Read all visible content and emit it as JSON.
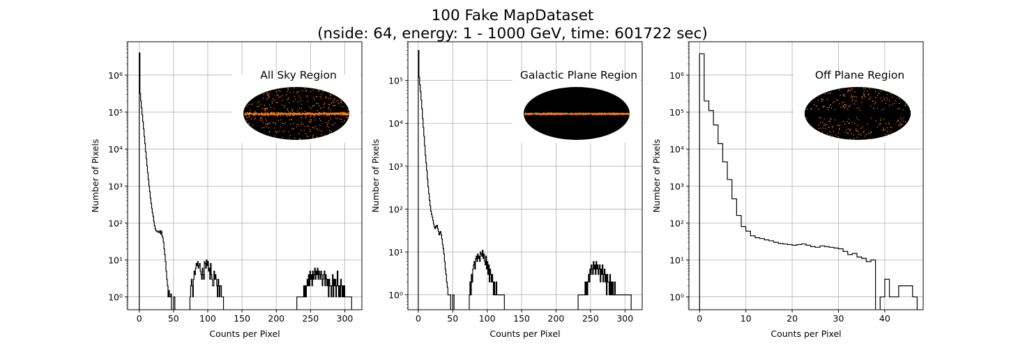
{
  "figure": {
    "title_line1": "100 Fake MapDataset",
    "title_line2": "(nside: 64, energy: 1 - 1000 GeV, time: 601722 sec)"
  },
  "colors": {
    "line": "#000000",
    "grid": "#b0b0b0",
    "sky_bg": "#000000",
    "sky_points": "#ff7f0e"
  },
  "chart_data": [
    {
      "type": "histogram",
      "title": "All Sky Region",
      "xlabel": "Counts per Pixel",
      "ylabel": "Number of Pixels",
      "y_scale": "log",
      "grid": true,
      "xlim": [
        -17,
        325
      ],
      "ylim": [
        0.45,
        8000000
      ],
      "xticks": [
        0,
        50,
        100,
        150,
        200,
        250,
        300
      ],
      "yticks": [
        1,
        10,
        100,
        1000,
        10000,
        100000,
        1000000
      ],
      "inset": "all-sky",
      "bin_width": 1,
      "runs": [
        {
          "x0": 0,
          "values": [
            4000000,
            320000,
            200000,
            130000,
            85000,
            55000,
            35000,
            22000,
            14000,
            8500,
            5500,
            3500,
            2300,
            1500,
            1000,
            700,
            480,
            340,
            250,
            190,
            150,
            110,
            85,
            70,
            62,
            60,
            58,
            60,
            55,
            57,
            62,
            50,
            60,
            45,
            40,
            30,
            20,
            14,
            9,
            5,
            3,
            2,
            1,
            1.5,
            1,
            1,
            1.2
          ]
        },
        {
          "x0": 50,
          "values": [
            1,
            1
          ]
        },
        {
          "x0": 74,
          "values": [
            1,
            2,
            3,
            2,
            1,
            3,
            5,
            4,
            6,
            8,
            7,
            9,
            6,
            7,
            8,
            5,
            4,
            3,
            6,
            4,
            3,
            9,
            8,
            6,
            10,
            7,
            9,
            5,
            6,
            3,
            8,
            4,
            3,
            2,
            2,
            5,
            3,
            4,
            3,
            2,
            1,
            3,
            2,
            1,
            2,
            2,
            1,
            1,
            1
          ]
        },
        {
          "x0": 230,
          "values": [
            1,
            1,
            1,
            1,
            1,
            1,
            1,
            1,
            1,
            1,
            2,
            1,
            2,
            1,
            2,
            3,
            2,
            4,
            2,
            5,
            3,
            4,
            2,
            5,
            3,
            4,
            6,
            3,
            5,
            4,
            6,
            3,
            5,
            4,
            3,
            5,
            4,
            2,
            3,
            4,
            5,
            2,
            4,
            3,
            2,
            3,
            1,
            3,
            2,
            2,
            1,
            2,
            4,
            1,
            3,
            2,
            3,
            1,
            2,
            5,
            2,
            1,
            2,
            1,
            3,
            2,
            1,
            2,
            1,
            2,
            1,
            1,
            1,
            1,
            1,
            1,
            1,
            1,
            1,
            1
          ]
        }
      ]
    },
    {
      "type": "histogram",
      "title": "Galactic Plane Region",
      "xlabel": "Counts per Pixel",
      "ylabel": "Number of Pixels",
      "y_scale": "log",
      "grid": true,
      "xlim": [
        -15,
        325
      ],
      "ylim": [
        0.45,
        800000
      ],
      "xticks": [
        0,
        50,
        100,
        150,
        200,
        250,
        300
      ],
      "yticks": [
        1,
        10,
        100,
        1000,
        10000,
        100000
      ],
      "inset": "galactic-plane",
      "bin_width": 1,
      "runs": [
        {
          "x0": 0,
          "values": [
            500000,
            120000,
            80000,
            55000,
            35000,
            22000,
            13000,
            8000,
            5000,
            3000,
            1800,
            1200,
            800,
            500,
            330,
            230,
            160,
            120,
            90,
            75,
            65,
            55,
            45,
            38,
            35,
            40,
            38,
            42,
            35,
            30,
            25,
            28,
            30,
            25,
            20,
            15,
            12,
            9,
            6,
            4,
            3,
            2,
            1.5,
            1,
            1,
            1,
            1
          ]
        },
        {
          "x0": 50,
          "values": [
            1,
            1
          ]
        },
        {
          "x0": 74,
          "values": [
            1,
            2,
            1,
            3,
            2,
            4,
            5,
            6,
            4,
            7,
            8,
            6,
            9,
            7,
            8,
            6,
            10,
            9,
            8,
            11,
            7,
            9,
            6,
            5,
            8,
            4,
            6,
            3,
            5,
            2,
            4,
            3,
            2,
            3,
            2,
            1,
            2,
            1,
            1,
            2,
            1,
            1,
            1,
            1,
            1,
            1,
            1,
            1,
            1,
            1,
            1
          ]
        },
        {
          "x0": 232,
          "values": [
            1,
            1,
            1,
            1,
            1,
            1,
            1,
            1,
            1,
            1,
            2,
            1,
            2,
            1,
            2,
            3,
            2,
            4,
            3,
            5,
            4,
            3,
            6,
            4,
            5,
            3,
            6,
            4,
            5,
            3,
            4,
            5,
            2,
            4,
            3,
            5,
            2,
            3,
            4,
            2,
            3,
            1,
            3,
            2,
            2,
            1,
            3,
            1,
            2,
            1,
            2,
            1,
            1,
            2,
            1,
            1,
            1,
            1,
            1,
            1,
            1,
            1,
            1,
            1,
            1,
            1,
            1,
            1,
            1,
            1,
            1,
            1,
            1,
            1,
            1,
            1,
            1
          ]
        }
      ]
    },
    {
      "type": "histogram",
      "title": "Off Plane Region",
      "xlabel": "Counts per Pixel",
      "ylabel": "Number of Pixels",
      "y_scale": "log",
      "grid": true,
      "xlim": [
        -2.3,
        48.3
      ],
      "ylim": [
        0.45,
        8000000
      ],
      "xticks": [
        0,
        10,
        20,
        30,
        40
      ],
      "yticks": [
        1,
        10,
        100,
        1000,
        10000,
        100000,
        1000000
      ],
      "inset": "off-plane",
      "bin_width": 1,
      "runs": [
        {
          "x0": 0,
          "values": [
            3800000,
            200000,
            110000,
            45000,
            14000,
            4500,
            1500,
            450,
            160,
            80,
            60,
            45,
            40,
            38,
            35,
            33,
            30,
            28,
            27,
            26,
            25,
            26,
            27,
            25,
            23,
            22,
            24,
            23,
            22,
            21,
            20,
            17,
            14,
            15,
            12,
            11,
            9,
            10,
            0,
            1,
            3,
            1,
            1,
            2,
            2,
            2,
            1
          ]
        }
      ]
    }
  ]
}
